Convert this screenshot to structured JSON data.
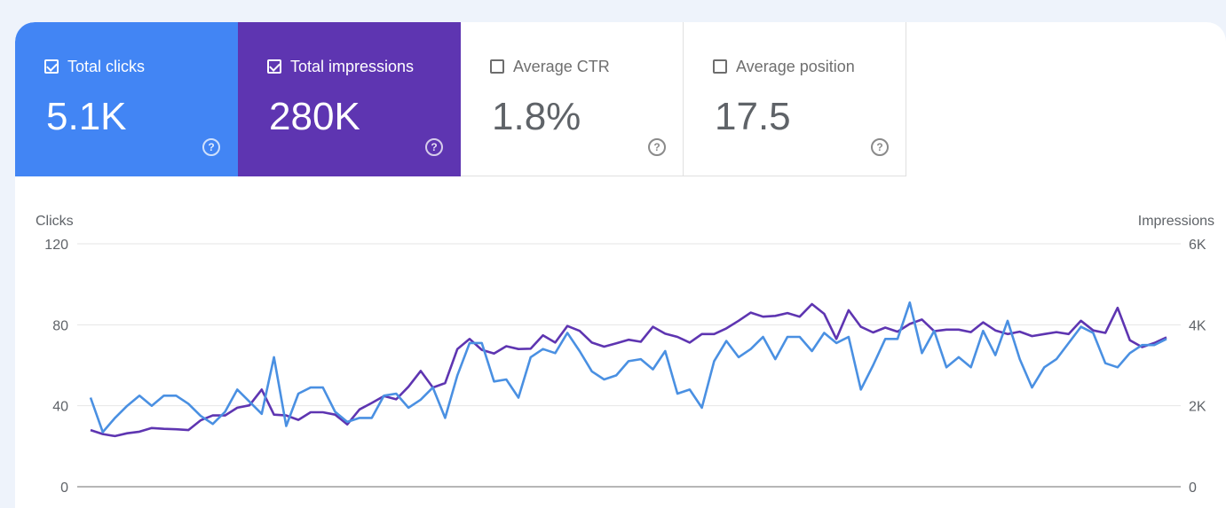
{
  "metrics": [
    {
      "label": "Total clicks",
      "value": "5.1K",
      "checked": true,
      "color": "#4285f4"
    },
    {
      "label": "Total impressions",
      "value": "280K",
      "checked": true,
      "color": "#5e35b1"
    },
    {
      "label": "Average CTR",
      "value": "1.8%",
      "checked": false
    },
    {
      "label": "Average position",
      "value": "17.5",
      "checked": false
    }
  ],
  "help_icon": "help-circle-icon",
  "chart_data": {
    "type": "line",
    "ylabel_left": "Clicks",
    "ylabel_right": "Impressions",
    "y_ticks_left": [
      "120",
      "80",
      "40",
      "0"
    ],
    "y_ticks_right": [
      "6K",
      "4K",
      "2K",
      "0"
    ],
    "ylim_left": [
      0,
      120
    ],
    "ylim_right": [
      0,
      6000
    ],
    "grid": true,
    "series": [
      {
        "name": "Clicks",
        "axis": "left",
        "color": "#4a90e2",
        "values": [
          44,
          27,
          34,
          40,
          45,
          40,
          45,
          45,
          41,
          35,
          31,
          37,
          48,
          42,
          36,
          64,
          30,
          46,
          49,
          49,
          37,
          32,
          34,
          34,
          45,
          46,
          39,
          43,
          49,
          34,
          55,
          71,
          71,
          52,
          53,
          44,
          64,
          68,
          66,
          76,
          67,
          57,
          53,
          55,
          62,
          63,
          58,
          67,
          46,
          48,
          39,
          62,
          72,
          64,
          68,
          74,
          63,
          74,
          74,
          67,
          76,
          71,
          74,
          48,
          60,
          73,
          73,
          91,
          66,
          77,
          59,
          64,
          59,
          77,
          65,
          82,
          63,
          49,
          59,
          63,
          71,
          79,
          76,
          61,
          59,
          66,
          70,
          70,
          73
        ]
      },
      {
        "name": "Impressions",
        "axis": "right",
        "color": "#5e35b1",
        "values": [
          1400,
          1300,
          1250,
          1320,
          1360,
          1450,
          1430,
          1420,
          1400,
          1640,
          1760,
          1760,
          1950,
          2010,
          2400,
          1780,
          1760,
          1650,
          1840,
          1840,
          1780,
          1540,
          1910,
          2070,
          2240,
          2160,
          2470,
          2860,
          2450,
          2560,
          3400,
          3650,
          3380,
          3290,
          3470,
          3400,
          3410,
          3740,
          3560,
          3970,
          3850,
          3560,
          3460,
          3540,
          3630,
          3580,
          3950,
          3780,
          3700,
          3560,
          3770,
          3770,
          3910,
          4100,
          4300,
          4200,
          4220,
          4290,
          4200,
          4510,
          4270,
          3650,
          4360,
          3950,
          3810,
          3930,
          3830,
          4020,
          4130,
          3840,
          3880,
          3880,
          3820,
          4060,
          3860,
          3770,
          3830,
          3720,
          3770,
          3820,
          3770,
          4100,
          3860,
          3800,
          4420,
          3620,
          3450,
          3550,
          3690
        ]
      }
    ]
  }
}
